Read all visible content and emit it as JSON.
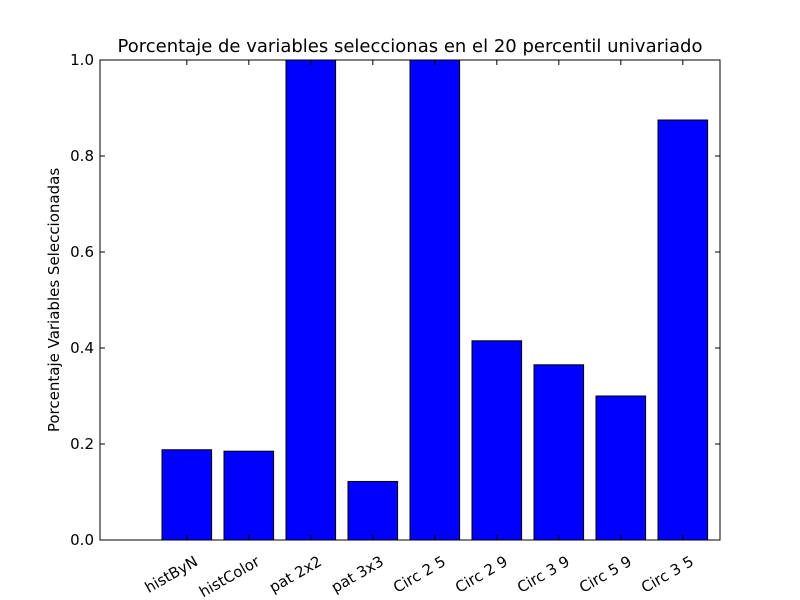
{
  "chart_data": {
    "type": "bar",
    "title": "Porcentaje de variables seleccionas en el 20 percentil univariado",
    "xlabel": "",
    "ylabel": "Porcentaje Variables Seleccionadas",
    "categories": [
      "histByN",
      "histColor",
      "pat 2x2",
      "pat 3x3",
      "Circ 2 5",
      "Circ 2 9",
      "Circ 3 9",
      "Circ 5 9",
      "Circ 3 5"
    ],
    "values": [
      0.188,
      0.185,
      1.0,
      0.122,
      1.0,
      0.415,
      0.365,
      0.3,
      0.875
    ],
    "ylim": [
      0.0,
      1.0
    ],
    "yticks": [
      "0.0",
      "0.2",
      "0.4",
      "0.6",
      "0.8",
      "1.0"
    ],
    "bar_color": "#0000ff",
    "grid": false
  }
}
